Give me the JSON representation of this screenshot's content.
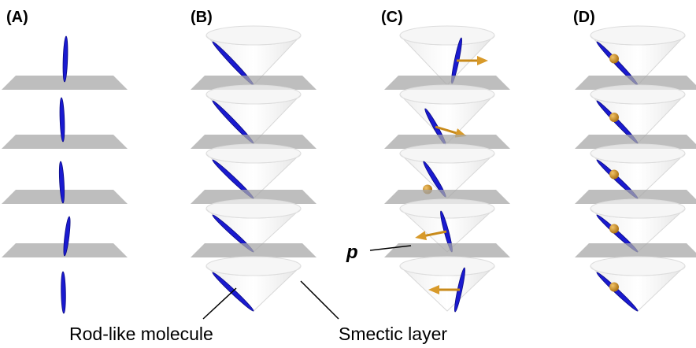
{
  "panels": [
    {
      "label": "(A)"
    },
    {
      "label": "(B)"
    },
    {
      "label": "(C)"
    },
    {
      "label": "(D)"
    }
  ],
  "annotations": {
    "molecule": "Rod-like molecule",
    "layer": "Smectic layer",
    "polarization": "p"
  }
}
